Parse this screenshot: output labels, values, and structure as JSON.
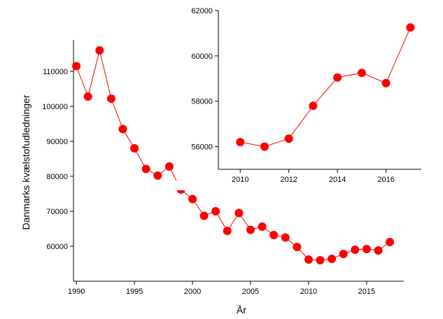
{
  "chart_data": [
    {
      "type": "line",
      "xlabel": "År",
      "ylabel": "Danmarks kvælstofudledninger",
      "x": [
        1990,
        1991,
        1992,
        1993,
        1994,
        1995,
        1996,
        1997,
        1998,
        1999,
        2000,
        2001,
        2002,
        2003,
        2004,
        2005,
        2006,
        2007,
        2008,
        2009,
        2010,
        2011,
        2012,
        2013,
        2014,
        2015,
        2016,
        2017
      ],
      "series": [
        {
          "values": [
            111500,
            102800,
            116000,
            102200,
            93500,
            88000,
            82100,
            80200,
            82800,
            76200,
            73500,
            68700,
            70000,
            64400,
            69500,
            64700,
            65600,
            63200,
            62500,
            59800,
            56200,
            56000,
            56400,
            57800,
            59000,
            59200,
            58800,
            61200
          ],
          "color": "#ff0000"
        }
      ],
      "xticks": [
        1990,
        1995,
        2000,
        2005,
        2010,
        2015
      ],
      "yticks": [
        60000,
        70000,
        80000,
        90000,
        100000,
        110000
      ],
      "xlim": [
        1989.75,
        2018.2
      ],
      "ylim": [
        50000,
        119000
      ],
      "grid": false,
      "legend": "none"
    },
    {
      "type": "line",
      "x": [
        2010,
        2011,
        2012,
        2013,
        2014,
        2015,
        2016,
        2017
      ],
      "series": [
        {
          "values": [
            56200,
            56000,
            56350,
            57800,
            59050,
            59250,
            58800,
            61250
          ],
          "color": "#ff0000"
        }
      ],
      "xticks": [
        2010,
        2012,
        2014,
        2016
      ],
      "yticks": [
        56000,
        58000,
        60000,
        62000
      ],
      "xlim": [
        2009.1,
        2017.45
      ],
      "ylim": [
        55000,
        62000
      ],
      "grid": false,
      "legend": "none"
    }
  ]
}
